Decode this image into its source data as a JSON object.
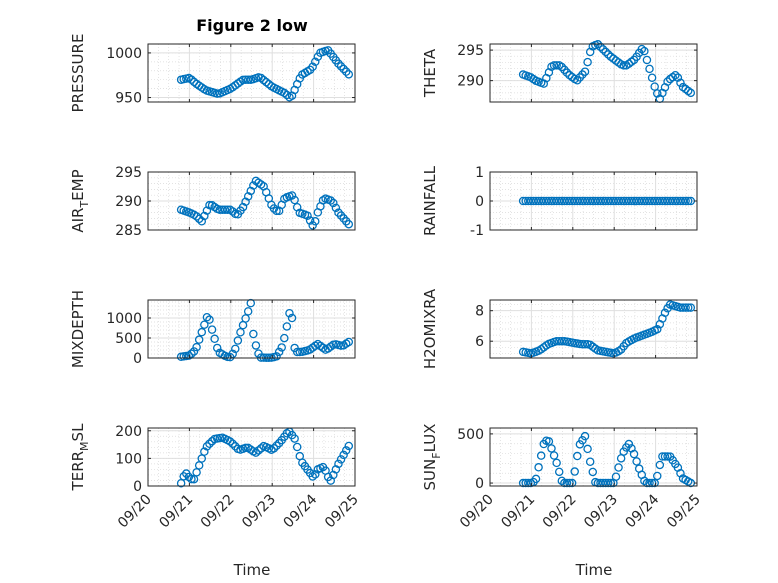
{
  "figure": {
    "title": "Figure 2 low",
    "xlabel_left": "Time",
    "xlabel_right": "Time",
    "marker_color": "#0072BD",
    "grid": true
  },
  "chart_data": [
    {
      "type": "scatter",
      "ylabel": "PRESSURE",
      "ylim": [
        945,
        1010
      ],
      "yticks": [
        950,
        1000
      ],
      "xticks": [
        "09/20",
        "09/21",
        "09/22",
        "09/23",
        "09/24",
        "09/25"
      ],
      "x_range_days": [
        "09/20",
        "09/25"
      ],
      "series": [
        {
          "x_knots": [
            20.8,
            21.0,
            21.15,
            21.4,
            21.7,
            22.0,
            22.3,
            22.5,
            22.7,
            23.0,
            23.3,
            23.45,
            23.7,
            23.95,
            24.15,
            24.35,
            24.6,
            24.85
          ],
          "y_knots": [
            970,
            972,
            966,
            958,
            954,
            960,
            970,
            970,
            973,
            962,
            955,
            949,
            975,
            982,
            1000,
            1003,
            988,
            976
          ]
        }
      ]
    },
    {
      "type": "scatter",
      "ylabel": "THETA",
      "ylim": [
        286.5,
        296
      ],
      "yticks": [
        290,
        295
      ],
      "xticks": [
        "09/20",
        "09/21",
        "09/22",
        "09/23",
        "09/24",
        "09/25"
      ],
      "x_range_days": [
        "09/20",
        "09/25"
      ],
      "series": [
        {
          "x_knots": [
            20.8,
            21.0,
            21.1,
            21.3,
            21.5,
            21.7,
            21.9,
            22.1,
            22.3,
            22.45,
            22.6,
            22.9,
            23.2,
            23.3,
            23.5,
            23.7,
            23.85,
            24.0,
            24.1,
            24.3,
            24.5,
            24.65,
            24.85
          ],
          "y_knots": [
            291,
            290.5,
            290,
            289.5,
            292.5,
            292.5,
            291,
            290,
            291.5,
            295.5,
            296,
            294,
            292.5,
            292.5,
            293.5,
            295.5,
            292,
            288.5,
            287,
            290,
            291,
            289,
            288
          ]
        }
      ]
    },
    {
      "type": "scatter",
      "ylabel": "AIR_TEMP",
      "ylim": [
        285,
        295
      ],
      "yticks": [
        285,
        290,
        295
      ],
      "xticks": [
        "09/20",
        "09/21",
        "09/22",
        "09/23",
        "09/24",
        "09/25"
      ],
      "x_range_days": [
        "09/20",
        "09/25"
      ],
      "series": [
        {
          "x_knots": [
            20.8,
            21.0,
            21.15,
            21.3,
            21.5,
            21.7,
            22.0,
            22.15,
            22.3,
            22.6,
            22.8,
            23.0,
            23.15,
            23.3,
            23.5,
            23.65,
            23.85,
            24.0,
            24.1,
            24.25,
            24.45,
            24.6,
            24.85
          ],
          "y_knots": [
            288.5,
            288,
            287.5,
            286.5,
            289.5,
            288.5,
            288.5,
            287.5,
            289,
            293.5,
            292.5,
            289,
            288,
            290.5,
            291,
            288,
            287.5,
            285.5,
            288,
            290.5,
            290,
            288,
            286
          ]
        }
      ]
    },
    {
      "type": "scatter",
      "ylabel": "RAINFALL",
      "ylim": [
        -1,
        1
      ],
      "yticks": [
        -1,
        0,
        1
      ],
      "xticks": [
        "09/20",
        "09/21",
        "09/22",
        "09/23",
        "09/24",
        "09/25"
      ],
      "x_range_days": [
        "09/20",
        "09/25"
      ],
      "series": [
        {
          "x_knots": [
            20.8,
            24.85
          ],
          "y_knots": [
            0,
            0
          ]
        }
      ]
    },
    {
      "type": "scatter",
      "ylabel": "MIXDEPTH",
      "ylim": [
        0,
        1450
      ],
      "yticks": [
        0,
        500,
        1000
      ],
      "xticks": [
        "09/20",
        "09/21",
        "09/22",
        "09/23",
        "09/24",
        "09/25"
      ],
      "x_range_days": [
        "09/20",
        "09/25"
      ],
      "series": [
        {
          "x_knots": [
            20.8,
            21.0,
            21.15,
            21.3,
            21.45,
            21.55,
            21.7,
            21.9,
            22.0,
            22.1,
            22.25,
            22.4,
            22.5,
            22.55,
            22.7,
            22.95,
            23.1,
            23.25,
            23.4,
            23.45,
            23.55,
            23.7,
            23.9,
            24.1,
            24.3,
            24.5,
            24.7,
            24.85
          ],
          "y_knots": [
            30,
            60,
            200,
            650,
            1100,
            700,
            150,
            30,
            20,
            200,
            700,
            1100,
            1430,
            500,
            10,
            5,
            30,
            300,
            1000,
            1350,
            150,
            150,
            200,
            350,
            200,
            350,
            300,
            400
          ]
        }
      ]
    },
    {
      "type": "scatter",
      "ylabel": "H2OMIXRA",
      "ylim": [
        4.9,
        8.7
      ],
      "yticks": [
        6,
        8
      ],
      "xticks": [
        "09/20",
        "09/21",
        "09/22",
        "09/23",
        "09/24",
        "09/25"
      ],
      "x_range_days": [
        "09/20",
        "09/25"
      ],
      "series": [
        {
          "x_knots": [
            20.8,
            21.0,
            21.2,
            21.4,
            21.6,
            21.8,
            22.0,
            22.2,
            22.4,
            22.6,
            22.8,
            23.0,
            23.15,
            23.3,
            23.5,
            23.7,
            23.9,
            24.05,
            24.15,
            24.25,
            24.35,
            24.6,
            24.85
          ],
          "y_knots": [
            5.3,
            5.2,
            5.4,
            5.8,
            6.0,
            6.0,
            5.9,
            5.8,
            5.8,
            5.4,
            5.3,
            5.2,
            5.4,
            5.9,
            6.2,
            6.4,
            6.6,
            6.8,
            7.4,
            8.0,
            8.4,
            8.2,
            8.2
          ]
        }
      ]
    },
    {
      "type": "scatter",
      "ylabel": "TERR_MSL",
      "ylim": [
        0,
        210
      ],
      "yticks": [
        0,
        100,
        200
      ],
      "xticks": [
        "09/20",
        "09/21",
        "09/22",
        "09/23",
        "09/24",
        "09/25"
      ],
      "x_range_days": [
        "09/20",
        "09/25"
      ],
      "series": [
        {
          "x_knots": [
            20.8,
            20.9,
            21.0,
            21.1,
            21.2,
            21.4,
            21.6,
            21.8,
            22.0,
            22.2,
            22.4,
            22.6,
            22.8,
            23.0,
            23.2,
            23.4,
            23.55,
            23.7,
            23.85,
            24.0,
            24.1,
            24.25,
            24.4,
            24.6,
            24.85
          ],
          "y_knots": [
            10,
            50,
            30,
            20,
            60,
            140,
            170,
            175,
            160,
            130,
            140,
            120,
            145,
            130,
            160,
            200,
            170,
            90,
            60,
            30,
            60,
            70,
            15,
            80,
            145
          ]
        }
      ]
    },
    {
      "type": "scatter",
      "ylabel": "SUN_FLUX",
      "ylim": [
        -30,
        560
      ],
      "yticks": [
        0,
        500
      ],
      "xticks": [
        "09/20",
        "09/21",
        "09/22",
        "09/23",
        "09/24",
        "09/25"
      ],
      "x_range_days": [
        "09/20",
        "09/25"
      ],
      "series": [
        {
          "x_knots": [
            20.8,
            21.0,
            21.1,
            21.3,
            21.4,
            21.6,
            21.75,
            21.8,
            22.0,
            22.15,
            22.3,
            22.4,
            22.55,
            22.65,
            22.8,
            23.0,
            23.2,
            23.35,
            23.45,
            23.6,
            23.75,
            23.85,
            24.0,
            24.15,
            24.35,
            24.55,
            24.65,
            24.85
          ],
          "y_knots": [
            0,
            0,
            20,
            400,
            450,
            220,
            0,
            0,
            0,
            380,
            480,
            250,
            0,
            0,
            0,
            0,
            300,
            400,
            330,
            150,
            0,
            0,
            0,
            270,
            270,
            150,
            50,
            0
          ]
        }
      ]
    }
  ]
}
